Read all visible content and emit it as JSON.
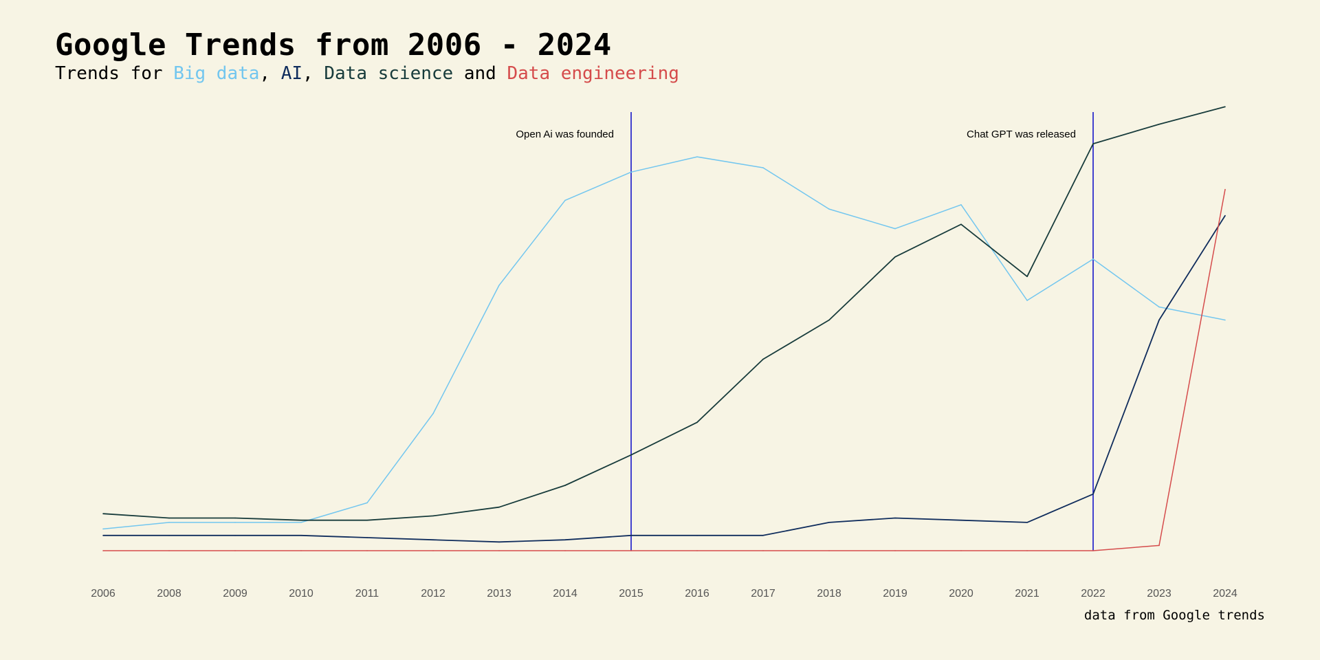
{
  "header": {
    "title": "Google Trends from 2006 - 2024",
    "subtitle_prefix": "Trends for ",
    "subtitle_sep1": ", ",
    "subtitle_sep2": ", ",
    "subtitle_and": " and "
  },
  "caption": "data from Google trends",
  "colors": {
    "big_data": "#72c6ef",
    "ai": "#0f2c5c",
    "data_science": "#173b3b",
    "data_engineering": "#d54b4b",
    "vline": "#1414c8"
  },
  "chart_data": {
    "type": "line",
    "title": "Google Trends from 2006 - 2024",
    "xlabel": "",
    "ylabel": "",
    "x": [
      "2006",
      "2008",
      "2009",
      "2010",
      "2011",
      "2012",
      "2013",
      "2014",
      "2015",
      "2016",
      "2017",
      "2018",
      "2019",
      "2020",
      "2021",
      "2022",
      "2023",
      "2024"
    ],
    "ylim": [
      0,
      100
    ],
    "grid": false,
    "legend": "subtitle",
    "series": [
      {
        "name": "Big data",
        "key": "big_data",
        "values": [
          5,
          6.5,
          6.5,
          6.5,
          11,
          31.5,
          61,
          80.5,
          87,
          90.5,
          88,
          78.5,
          74,
          79.5,
          57.5,
          67,
          56,
          53
        ]
      },
      {
        "name": "AI",
        "key": "ai",
        "values": [
          3.5,
          3.5,
          3.5,
          3.5,
          3,
          2.5,
          2,
          2.5,
          3.5,
          3.5,
          3.5,
          6.5,
          7.5,
          7,
          6.5,
          13,
          53,
          77
        ]
      },
      {
        "name": "Data science",
        "key": "data_science",
        "values": [
          8.5,
          7.5,
          7.5,
          7,
          7,
          8,
          10,
          15,
          22,
          29.5,
          44,
          53,
          67.5,
          75,
          63,
          93.5,
          98,
          102
        ]
      },
      {
        "name": "Data engineering",
        "key": "data_engineering",
        "values": [
          0,
          0,
          0,
          0,
          0,
          0,
          0,
          0,
          0,
          0,
          0,
          0,
          0,
          0,
          0,
          0,
          1.2,
          83
        ]
      }
    ],
    "annotations": [
      {
        "x": "2015",
        "label": "Open Ai was founded"
      },
      {
        "x": "2022",
        "label": "Chat GPT was released"
      }
    ]
  }
}
